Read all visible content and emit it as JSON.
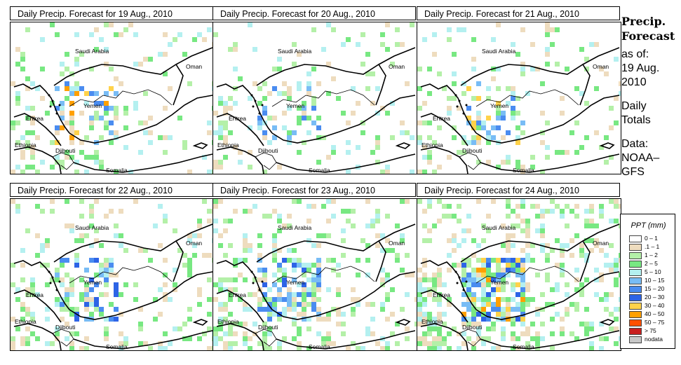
{
  "panels": [
    {
      "title": "Daily Precip. Forecast for  19 Aug., 2010"
    },
    {
      "title": "Daily Precip. Forecast for  20 Aug., 2010"
    },
    {
      "title": "Daily Precip. Forecast for  21 Aug., 2010"
    },
    {
      "title": "Daily Precip. Forecast for  22 Aug., 2010"
    },
    {
      "title": "Daily Precip. Forecast for  23 Aug., 2010"
    },
    {
      "title": "Daily Precip. Forecast for  24 Aug., 2010"
    }
  ],
  "map_labels": {
    "saudi_arabia": "Saudi Arabia",
    "oman": "Oman",
    "yemen": "Yemen",
    "eritrea": "Eritrea",
    "ethiopia": "Ethiopia",
    "djibouti": "Djibouti",
    "somalia": "Somalia"
  },
  "side": {
    "title_line1": "Precip.",
    "title_line2": "Forecast",
    "asof_line1": "as of:",
    "asof_line2": "19 Aug.",
    "asof_line3": "2010",
    "totals_line1": "Daily",
    "totals_line2": "Totals",
    "source_line1": "Data:",
    "source_line2": "NOAA–",
    "source_line3": "GFS"
  },
  "legend": {
    "title": "PPT (mm)",
    "entries": [
      {
        "label": "0 – 1",
        "color": "#ffffff"
      },
      {
        "label": ".1 – 1",
        "color": "#eedcbe"
      },
      {
        "label": "1 – 2",
        "color": "#b4f0a8"
      },
      {
        "label": "2 – 5",
        "color": "#78e882"
      },
      {
        "label": "5 – 10",
        "color": "#b4f0f0"
      },
      {
        "label": "10 – 15",
        "color": "#78bcf5"
      },
      {
        "label": "15 – 20",
        "color": "#4a8cf0"
      },
      {
        "label": "20 – 30",
        "color": "#2d64e6"
      },
      {
        "label": "30 – 40",
        "color": "#ffd24a"
      },
      {
        "label": "40 – 50",
        "color": "#ffa000"
      },
      {
        "label": "50 – 75",
        "color": "#ff5000"
      },
      {
        "label": "> 75",
        "color": "#c81e1e"
      },
      {
        "label": "nodata",
        "color": "#c8c8c8"
      }
    ]
  }
}
